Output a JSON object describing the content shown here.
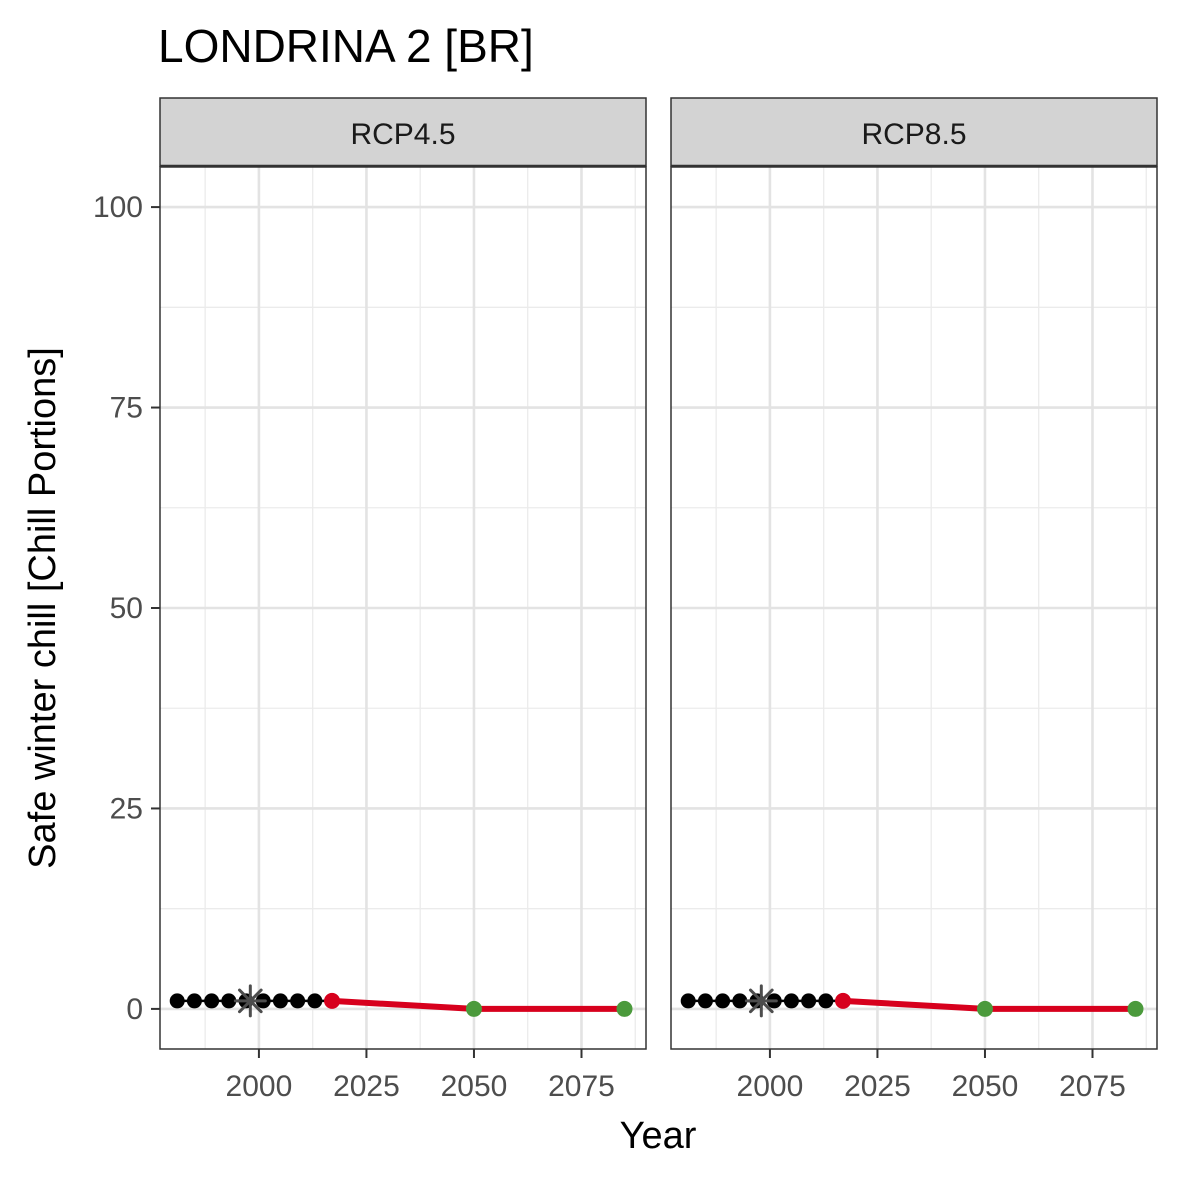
{
  "title": "LONDRINA 2 [BR]",
  "chart_data": {
    "type": "line",
    "title": "LONDRINA 2 [BR]",
    "xlabel": "Year",
    "ylabel": "Safe winter chill [Chill Portions]",
    "xlim": [
      1977,
      2090
    ],
    "ylim": [
      -5,
      105
    ],
    "x_ticks": [
      2000,
      2025,
      2050,
      2075
    ],
    "y_ticks": [
      0,
      25,
      50,
      75,
      100
    ],
    "grid": true,
    "colors": {
      "historic": "#000000",
      "reference": "#4d4d4d",
      "red_line": "#d7001d",
      "green_point": "#4b9a3c",
      "strip_bg": "#d3d3d3"
    },
    "panels": [
      {
        "label": "RCP4.5",
        "historic": {
          "x": [
            1981,
            1985,
            1989,
            1993,
            1997,
            2001,
            2005,
            2009,
            2013
          ],
          "y": [
            1,
            1,
            1,
            1,
            1,
            1,
            1,
            1,
            1
          ]
        },
        "reference": {
          "x": 1998,
          "y": 1
        },
        "scenario_line": {
          "x": [
            2017,
            2050,
            2085
          ],
          "y": [
            1,
            0,
            0
          ]
        },
        "present_point": {
          "x": 2017,
          "y": 1
        },
        "future_points": {
          "x": [
            2050,
            2085
          ],
          "y": [
            0,
            0
          ]
        }
      },
      {
        "label": "RCP8.5",
        "historic": {
          "x": [
            1981,
            1985,
            1989,
            1993,
            1997,
            2001,
            2005,
            2009,
            2013
          ],
          "y": [
            1,
            1,
            1,
            1,
            1,
            1,
            1,
            1,
            1
          ]
        },
        "reference": {
          "x": 1998,
          "y": 1
        },
        "scenario_line": {
          "x": [
            2017,
            2050,
            2085
          ],
          "y": [
            1,
            0,
            0
          ]
        },
        "present_point": {
          "x": 2017,
          "y": 1
        },
        "future_points": {
          "x": [
            2050,
            2085
          ],
          "y": [
            0,
            0
          ]
        }
      }
    ]
  }
}
